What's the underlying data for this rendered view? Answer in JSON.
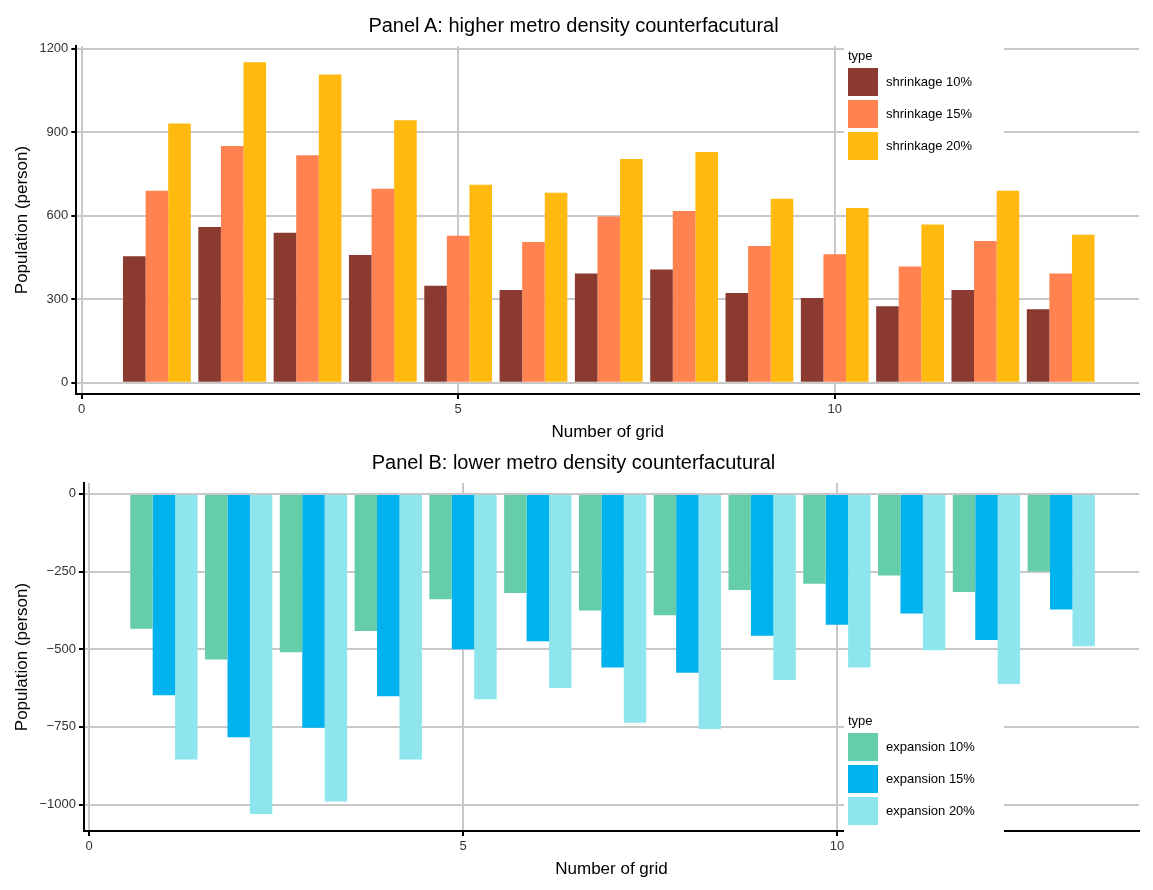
{
  "chart_data": [
    {
      "type": "bar",
      "title": "Panel A: higher metro density counterfacutural",
      "xlabel": "Number of grid",
      "ylabel": "Population (person)",
      "legend_title": "type",
      "x": [
        1,
        2,
        3,
        4,
        5,
        6,
        7,
        8,
        9,
        10,
        11,
        12,
        13
      ],
      "xlim": [
        -0.07,
        14.04
      ],
      "xticks": [
        0,
        5,
        10
      ],
      "ylim": [
        -40,
        1210
      ],
      "yticks": [
        0,
        300,
        600,
        900,
        1200
      ],
      "grid": true,
      "legend": "top right",
      "series": [
        {
          "name": "shrinkage 10%",
          "color": "#8b3a2f",
          "values": [
            455,
            560,
            539,
            459,
            349,
            334,
            393,
            407,
            323,
            305,
            275,
            334,
            264
          ]
        },
        {
          "name": "shrinkage 15%",
          "color": "#ff8250",
          "values": [
            690,
            851,
            818,
            697,
            528,
            506,
            598,
            617,
            492,
            462,
            418,
            510,
            393
          ]
        },
        {
          "name": "shrinkage 20%",
          "color": "#ffb90f",
          "values": [
            932,
            1152,
            1108,
            943,
            712,
            683,
            804,
            829,
            661,
            628,
            569,
            690,
            532
          ]
        }
      ]
    },
    {
      "type": "bar",
      "title": "Panel B: lower metro density counterfacutural",
      "xlabel": "Number of grid",
      "ylabel": "Population (person)",
      "legend_title": "type",
      "x": [
        1,
        2,
        3,
        4,
        5,
        6,
        7,
        8,
        9,
        10,
        11,
        12,
        13
      ],
      "xlim": [
        -0.07,
        14.04
      ],
      "xticks": [
        0,
        5,
        10
      ],
      "ylim": [
        -1085,
        35
      ],
      "yticks": [
        -1000,
        -750,
        -500,
        -250,
        0
      ],
      "grid": true,
      "legend": "bottom right",
      "series": [
        {
          "name": "expansion 10%",
          "color": "#66cdaa",
          "values": [
            -434,
            -533,
            -510,
            -441,
            -339,
            -319,
            -375,
            -391,
            -309,
            -289,
            -263,
            -316,
            -250
          ]
        },
        {
          "name": "expansion 15%",
          "color": "#00b2ee",
          "values": [
            -648,
            -783,
            -753,
            -651,
            -500,
            -474,
            -559,
            -576,
            -457,
            -421,
            -385,
            -470,
            -372
          ]
        },
        {
          "name": "expansion 20%",
          "color": "#8ee5ee",
          "values": [
            -855,
            -1030,
            -990,
            -855,
            -661,
            -625,
            -737,
            -757,
            -599,
            -559,
            -503,
            -612,
            -490
          ]
        }
      ]
    }
  ]
}
